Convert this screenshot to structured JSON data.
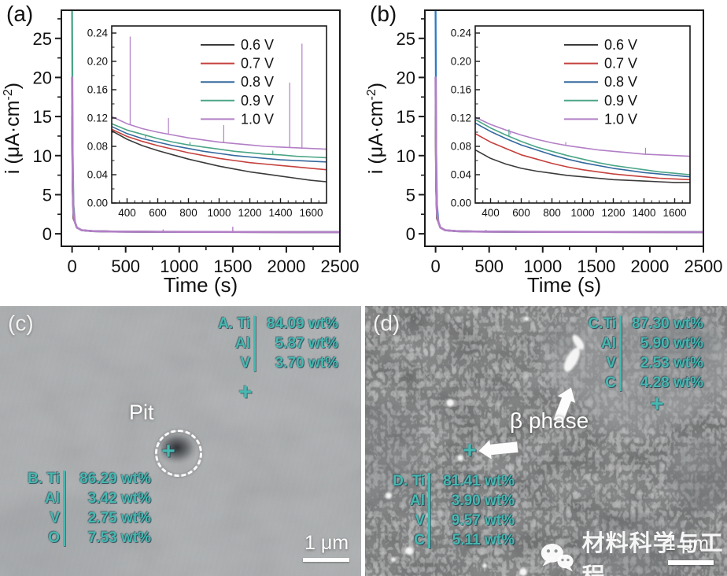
{
  "figure": {
    "background": "#ffffff"
  },
  "annotation_color": "#46b8b0",
  "icons": {
    "point_marker": "+",
    "wechat": "wechat-logo"
  },
  "series_colors": {
    "0.6 V": "#3b3b3b",
    "0.7 V": "#c5403c",
    "0.8 V": "#33689e",
    "0.9 V": "#4aa586",
    "1.0 V": "#b27fc6"
  },
  "chart_data": [
    {
      "id": "a",
      "type": "line",
      "panel_label": "(a)",
      "xlabel": "Time (s)",
      "ylabel": "i (μA·cm⁻²)",
      "ylabel_parts": {
        "pre": "i (μA·cm",
        "sup": "-2",
        "post": ")"
      },
      "main": {
        "xlim": [
          -100,
          2500
        ],
        "ylim": [
          -1.6,
          28.6
        ],
        "xticks": [
          0,
          500,
          1000,
          1500,
          2000,
          2500
        ],
        "yticks": [
          0,
          5,
          10,
          15,
          20,
          25
        ],
        "xminor": 250,
        "yminor": 2.5,
        "series": [
          {
            "name": "0.6 V",
            "peak": 15
          },
          {
            "name": "0.7 V",
            "peak": 16.5
          },
          {
            "name": "0.8 V",
            "peak": 18
          },
          {
            "name": "0.9 V",
            "peak": 28.6
          },
          {
            "name": "1.0 V",
            "peak": 20
          }
        ],
        "spikes": [
          {
            "name": "1.0 V",
            "events": [
              [
                850,
                0.55
              ],
              [
                1500,
                0.9
              ]
            ]
          }
        ]
      },
      "inset": {
        "xlim": [
          300,
          1700
        ],
        "ylim": [
          0,
          0.25
        ],
        "xticks": [
          400,
          600,
          800,
          1000,
          1200,
          1400,
          1600
        ],
        "yticks": [
          0.0,
          0.04,
          0.08,
          0.12,
          0.16,
          0.2,
          0.24
        ],
        "xminor": 50,
        "yminor": 0.02,
        "legend": [
          "0.6 V",
          "0.7 V",
          "0.8 V",
          "0.9 V",
          "1.0 V"
        ],
        "x0": 300,
        "dx": 100,
        "series": [
          {
            "name": "0.6 V",
            "values": [
              0.102,
              0.09,
              0.081,
              0.074,
              0.068,
              0.062,
              0.057,
              0.052,
              0.048,
              0.044,
              0.041,
              0.038,
              0.035,
              0.032,
              0.03
            ]
          },
          {
            "name": "0.7 V",
            "values": [
              0.104,
              0.094,
              0.087,
              0.081,
              0.076,
              0.071,
              0.067,
              0.063,
              0.06,
              0.057,
              0.055,
              0.053,
              0.051,
              0.049,
              0.047
            ]
          },
          {
            "name": "0.8 V",
            "values": [
              0.108,
              0.098,
              0.091,
              0.086,
              0.081,
              0.077,
              0.073,
              0.07,
              0.067,
              0.065,
              0.063,
              0.061,
              0.06,
              0.059,
              0.058
            ]
          },
          {
            "name": "0.9 V",
            "values": [
              0.112,
              0.103,
              0.097,
              0.091,
              0.086,
              0.082,
              0.079,
              0.076,
              0.073,
              0.071,
              0.069,
              0.068,
              0.066,
              0.065,
              0.064
            ]
          },
          {
            "name": "1.0 V",
            "values": [
              0.122,
              0.112,
              0.105,
              0.1,
              0.096,
              0.092,
              0.089,
              0.086,
              0.084,
              0.082,
              0.08,
              0.079,
              0.078,
              0.077,
              0.076
            ]
          }
        ],
        "spikes": [
          {
            "name": "1.0 V",
            "events": [
              [
                420,
                0.235
              ],
              [
                670,
                0.12
              ],
              [
                1030,
                0.11
              ],
              [
                1460,
                0.17
              ],
              [
                1540,
                0.225
              ]
            ]
          },
          {
            "name": "0.9 V",
            "events": [
              [
                520,
                0.092
              ],
              [
                810,
                0.086
              ],
              [
                1350,
                0.074
              ]
            ]
          }
        ]
      }
    },
    {
      "id": "b",
      "type": "line",
      "panel_label": "(b)",
      "xlabel": "Time (s)",
      "ylabel": "i (μA·cm⁻²)",
      "ylabel_parts": {
        "pre": "i (μA·cm",
        "sup": "-2",
        "post": ")"
      },
      "main": {
        "xlim": [
          -100,
          2500
        ],
        "ylim": [
          -1.6,
          28.6
        ],
        "xticks": [
          0,
          500,
          1000,
          1500,
          2000,
          2500
        ],
        "yticks": [
          0,
          5,
          10,
          15,
          20,
          25
        ],
        "xminor": 250,
        "yminor": 2.5,
        "series": [
          {
            "name": "0.6 V",
            "peak": 15
          },
          {
            "name": "0.7 V",
            "peak": 16.5
          },
          {
            "name": "0.8 V",
            "peak": 28.6,
            "color_override": "#2e7ac5"
          },
          {
            "name": "0.9 V",
            "peak": 18
          },
          {
            "name": "1.0 V",
            "peak": 20
          }
        ],
        "spikes": [
          {
            "name": "1.0 V",
            "events": [
              [
                470,
                0.5
              ]
            ]
          }
        ]
      },
      "inset": {
        "xlim": [
          300,
          1700
        ],
        "ylim": [
          0,
          0.25
        ],
        "xticks": [
          400,
          600,
          800,
          1000,
          1200,
          1400,
          1600
        ],
        "yticks": [
          0.0,
          0.04,
          0.08,
          0.12,
          0.16,
          0.2,
          0.24
        ],
        "xminor": 50,
        "yminor": 0.02,
        "legend": [
          "0.6 V",
          "0.7 V",
          "0.8 V",
          "0.9 V",
          "1.0 V"
        ],
        "x0": 300,
        "dx": 100,
        "series": [
          {
            "name": "0.6 V",
            "values": [
              0.075,
              0.063,
              0.055,
              0.049,
              0.045,
              0.042,
              0.039,
              0.037,
              0.035,
              0.033,
              0.032,
              0.031,
              0.03,
              0.029,
              0.029
            ]
          },
          {
            "name": "0.7 V",
            "values": [
              0.098,
              0.086,
              0.077,
              0.068,
              0.062,
              0.056,
              0.051,
              0.047,
              0.044,
              0.041,
              0.039,
              0.037,
              0.035,
              0.034,
              0.033
            ]
          },
          {
            "name": "0.8 V",
            "values": [
              0.113,
              0.101,
              0.091,
              0.082,
              0.075,
              0.068,
              0.062,
              0.057,
              0.053,
              0.049,
              0.046,
              0.043,
              0.041,
              0.039,
              0.037
            ]
          },
          {
            "name": "0.9 V",
            "values": [
              0.118,
              0.106,
              0.096,
              0.087,
              0.079,
              0.073,
              0.067,
              0.062,
              0.057,
              0.053,
              0.05,
              0.047,
              0.044,
              0.042,
              0.04
            ]
          },
          {
            "name": "1.0 V",
            "values": [
              0.121,
              0.111,
              0.103,
              0.096,
              0.09,
              0.085,
              0.081,
              0.078,
              0.075,
              0.073,
              0.071,
              0.069,
              0.068,
              0.067,
              0.066
            ]
          }
        ],
        "spikes": [
          {
            "name": "1.0 V",
            "events": [
              [
                530,
                0.097
              ],
              [
                890,
                0.086
              ],
              [
                1410,
                0.078
              ]
            ]
          },
          {
            "name": "0.9 V",
            "events": [
              [
                520,
                0.104
              ]
            ]
          }
        ]
      }
    }
  ],
  "sem_panels": [
    {
      "id": "c",
      "panel_label": "(c)",
      "pit_label": "Pit",
      "scale_bar": "1 μm",
      "eds_blocks": [
        {
          "id": "A",
          "rows": [
            [
              "A. Ti",
              "84.09 wt%"
            ],
            [
              "Al",
              "5.87 wt%"
            ],
            [
              "V",
              "3.70 wt%"
            ]
          ]
        },
        {
          "id": "B",
          "rows": [
            [
              "B. Ti",
              "86.29 wt%"
            ],
            [
              "Al",
              "3.42 wt%"
            ],
            [
              "V",
              "2.75 wt%"
            ],
            [
              "O",
              "7.53 wt%"
            ]
          ]
        }
      ]
    },
    {
      "id": "d",
      "panel_label": "(d)",
      "beta_label": "β phase",
      "watermark": "材料科学与工程",
      "scale_bar": "1 μm",
      "eds_blocks": [
        {
          "id": "C",
          "rows": [
            [
              "C.Ti",
              "87.30 wt%"
            ],
            [
              "Al",
              "5.90 wt%"
            ],
            [
              "V",
              "2.53 wt%"
            ],
            [
              "C",
              "4.28 wt%"
            ]
          ]
        },
        {
          "id": "D",
          "rows": [
            [
              "D. Ti",
              "81.41 wt%"
            ],
            [
              "Al",
              "3.90 wt%"
            ],
            [
              "V",
              "9.57 wt%"
            ],
            [
              "C",
              "5.11 wt%"
            ]
          ]
        }
      ]
    }
  ]
}
